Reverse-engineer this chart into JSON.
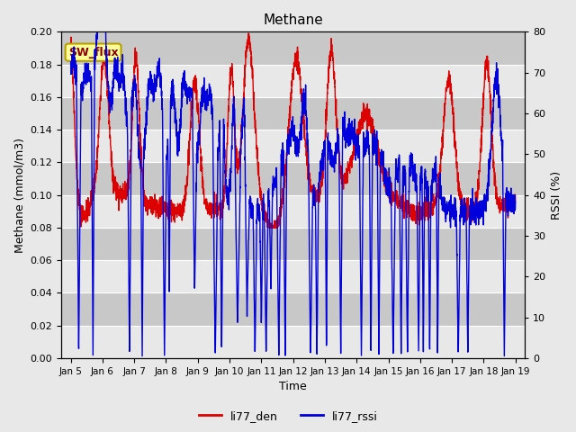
{
  "title": "Methane",
  "xlabel": "Time",
  "ylabel_left": "Methane (mmol/m3)",
  "ylabel_right": "RSSI (%)",
  "ylim_left": [
    0.0,
    0.2
  ],
  "ylim_right": [
    0,
    80
  ],
  "yticks_left": [
    0.0,
    0.02,
    0.04,
    0.06,
    0.08,
    0.1,
    0.12,
    0.14,
    0.16,
    0.18,
    0.2
  ],
  "yticks_right": [
    0,
    10,
    20,
    30,
    40,
    50,
    60,
    70,
    80
  ],
  "xtick_labels": [
    "Jan 5",
    "Jan 6",
    "Jan 7",
    "Jan 8",
    "Jan 9",
    "Jan 10",
    "Jan 11",
    "Jan 12",
    "Jan 13",
    "Jan 14",
    "Jan 15",
    "Jan 16",
    "Jan 17",
    "Jan 18",
    "Jan 19"
  ],
  "color_den": "#dd0000",
  "color_rssi": "#0000dd",
  "legend_label_den": "li77_den",
  "legend_label_rssi": "li77_rssi",
  "sw_flux_label": "SW_flux",
  "fig_bg": "#e8e8e8",
  "plot_bg": "#dcdcdc",
  "band_light": "#e8e8e8",
  "band_dark": "#c8c8c8",
  "grid_color": "#f0f0f0"
}
